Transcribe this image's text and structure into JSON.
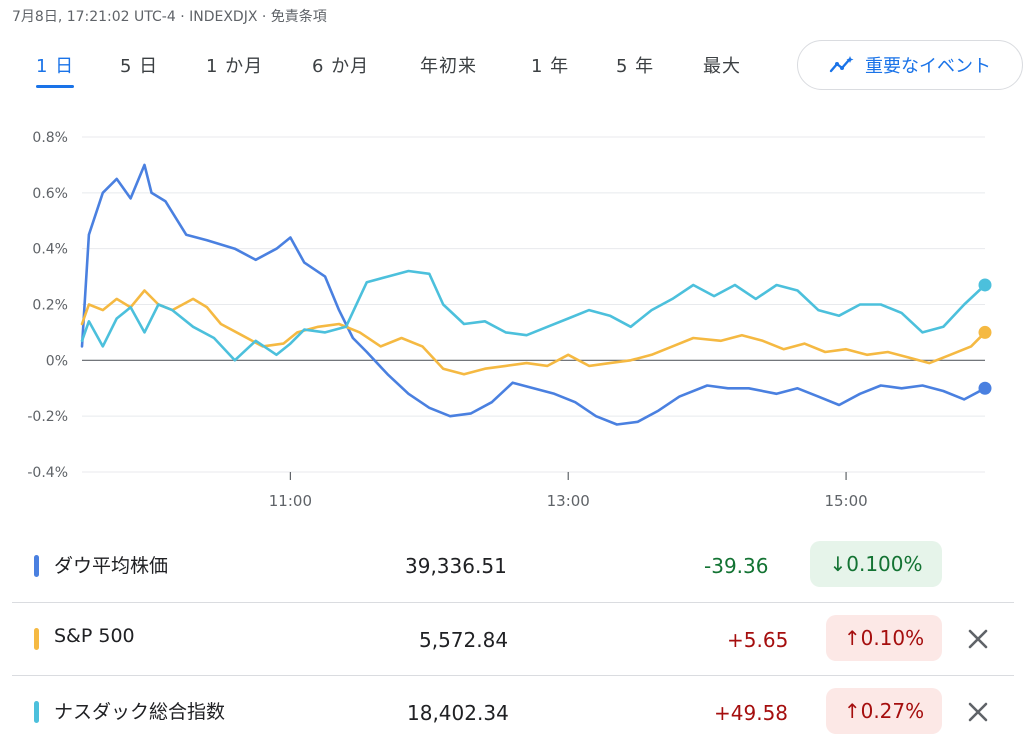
{
  "header": {
    "meta": "7月8日, 17:21:02 UTC-4 · INDEXDJX · 免責条項"
  },
  "range_tabs": [
    {
      "label": "1 日",
      "active": true
    },
    {
      "label": "5 日",
      "active": false
    },
    {
      "label": "1 か月",
      "active": false
    },
    {
      "label": "6 か月",
      "active": false
    },
    {
      "label": "年初来",
      "active": false
    },
    {
      "label": "1 年",
      "active": false
    },
    {
      "label": "5 年",
      "active": false
    },
    {
      "label": "最大",
      "active": false
    }
  ],
  "events_button": {
    "label": "重要なイベント",
    "icon": "trend-sparkle-icon"
  },
  "colors": {
    "dow": "#4a80e0",
    "sp500": "#f5b942",
    "nasdaq": "#4cc0dc",
    "grid": "#e8eaed",
    "baseline": "#5f6368",
    "axis_text": "#5f6368"
  },
  "chart_data": {
    "type": "line",
    "ylim": [
      -0.4,
      0.8
    ],
    "ytick_values": [
      -0.4,
      -0.2,
      0,
      0.2,
      0.4,
      0.6,
      0.8
    ],
    "ytick_labels": [
      "-0.4%",
      "-0.2%",
      "0%",
      "0.2%",
      "0.4%",
      "0.6%",
      "0.8%"
    ],
    "xlim": [
      9.5,
      16.0
    ],
    "xtick_values": [
      11,
      13,
      15
    ],
    "xtick_labels": [
      "11:00",
      "13:00",
      "15:00"
    ],
    "grid": true,
    "series": [
      {
        "name": "ダウ平均株価",
        "key": "dow",
        "x": [
          9.5,
          9.55,
          9.65,
          9.75,
          9.85,
          9.95,
          10.0,
          10.1,
          10.25,
          10.4,
          10.6,
          10.75,
          10.9,
          11.0,
          11.1,
          11.25,
          11.35,
          11.45,
          11.55,
          11.7,
          11.85,
          12.0,
          12.15,
          12.3,
          12.45,
          12.6,
          12.75,
          12.9,
          13.05,
          13.2,
          13.35,
          13.5,
          13.65,
          13.8,
          14.0,
          14.15,
          14.3,
          14.5,
          14.65,
          14.8,
          14.95,
          15.1,
          15.25,
          15.4,
          15.55,
          15.7,
          15.85,
          16.0
        ],
        "y": [
          0.05,
          0.45,
          0.6,
          0.65,
          0.58,
          0.7,
          0.6,
          0.57,
          0.45,
          0.43,
          0.4,
          0.36,
          0.4,
          0.44,
          0.35,
          0.3,
          0.18,
          0.08,
          0.03,
          -0.05,
          -0.12,
          -0.17,
          -0.2,
          -0.19,
          -0.15,
          -0.08,
          -0.1,
          -0.12,
          -0.15,
          -0.2,
          -0.23,
          -0.22,
          -0.18,
          -0.13,
          -0.09,
          -0.1,
          -0.1,
          -0.12,
          -0.1,
          -0.13,
          -0.16,
          -0.12,
          -0.09,
          -0.1,
          -0.09,
          -0.11,
          -0.14,
          -0.1
        ]
      },
      {
        "name": "S&P 500",
        "key": "sp500",
        "x": [
          9.5,
          9.55,
          9.65,
          9.75,
          9.85,
          9.95,
          10.05,
          10.15,
          10.3,
          10.4,
          10.5,
          10.65,
          10.8,
          10.95,
          11.05,
          11.2,
          11.35,
          11.5,
          11.65,
          11.8,
          11.95,
          12.1,
          12.25,
          12.4,
          12.55,
          12.7,
          12.85,
          13.0,
          13.15,
          13.3,
          13.45,
          13.6,
          13.75,
          13.9,
          14.1,
          14.25,
          14.4,
          14.55,
          14.7,
          14.85,
          15.0,
          15.15,
          15.3,
          15.45,
          15.6,
          15.75,
          15.9,
          16.0
        ],
        "y": [
          0.13,
          0.2,
          0.18,
          0.22,
          0.19,
          0.25,
          0.2,
          0.18,
          0.22,
          0.19,
          0.13,
          0.09,
          0.05,
          0.06,
          0.1,
          0.12,
          0.13,
          0.1,
          0.05,
          0.08,
          0.05,
          -0.03,
          -0.05,
          -0.03,
          -0.02,
          -0.01,
          -0.02,
          0.02,
          -0.02,
          -0.01,
          0.0,
          0.02,
          0.05,
          0.08,
          0.07,
          0.09,
          0.07,
          0.04,
          0.06,
          0.03,
          0.04,
          0.02,
          0.03,
          0.01,
          -0.01,
          0.02,
          0.05,
          0.1
        ]
      },
      {
        "name": "ナスダック総合指数",
        "key": "nasdaq",
        "x": [
          9.5,
          9.55,
          9.65,
          9.75,
          9.85,
          9.95,
          10.05,
          10.15,
          10.3,
          10.45,
          10.6,
          10.75,
          10.9,
          11.0,
          11.1,
          11.25,
          11.4,
          11.55,
          11.7,
          11.85,
          12.0,
          12.1,
          12.25,
          12.4,
          12.55,
          12.7,
          12.85,
          13.0,
          13.15,
          13.3,
          13.45,
          13.6,
          13.75,
          13.9,
          14.05,
          14.2,
          14.35,
          14.5,
          14.65,
          14.8,
          14.95,
          15.1,
          15.25,
          15.4,
          15.55,
          15.7,
          15.85,
          16.0
        ],
        "y": [
          0.07,
          0.14,
          0.05,
          0.15,
          0.19,
          0.1,
          0.2,
          0.18,
          0.12,
          0.08,
          0.0,
          0.07,
          0.02,
          0.06,
          0.11,
          0.1,
          0.12,
          0.28,
          0.3,
          0.32,
          0.31,
          0.2,
          0.13,
          0.14,
          0.1,
          0.09,
          0.12,
          0.15,
          0.18,
          0.16,
          0.12,
          0.18,
          0.22,
          0.27,
          0.23,
          0.27,
          0.22,
          0.27,
          0.25,
          0.18,
          0.16,
          0.2,
          0.2,
          0.17,
          0.1,
          0.12,
          0.2,
          0.27
        ]
      }
    ]
  },
  "legend": [
    {
      "key": "dow",
      "name": "ダウ平均株価",
      "price": "39,336.51",
      "change": "-39.36",
      "pct": "↓0.100%",
      "direction": "down",
      "closable": false
    },
    {
      "key": "sp500",
      "name": "S&P 500",
      "price": "5,572.84",
      "change": "+5.65",
      "pct": "↑0.10%",
      "direction": "up",
      "closable": true
    },
    {
      "key": "nasdaq",
      "name": "ナスダック総合指数",
      "price": "18,402.34",
      "change": "+49.58",
      "pct": "↑0.27%",
      "direction": "up",
      "closable": true
    }
  ]
}
